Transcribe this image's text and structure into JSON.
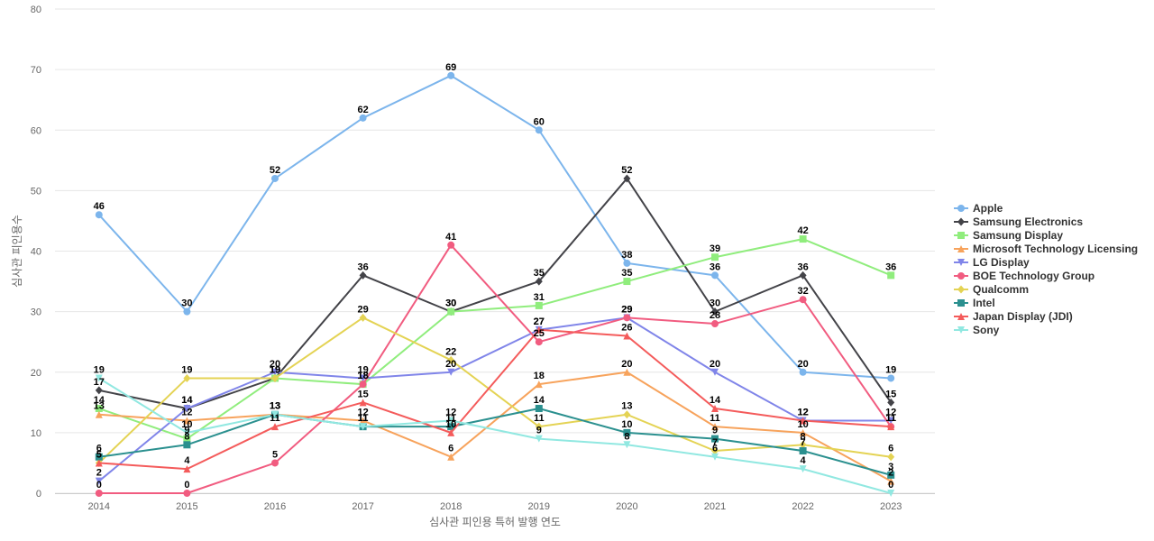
{
  "chart_data": {
    "type": "line",
    "title": "",
    "xlabel": "심사관 피인용 특허 발행 연도",
    "ylabel": "심사관 피인용수",
    "x": [
      "2014",
      "2015",
      "2016",
      "2017",
      "2018",
      "2019",
      "2020",
      "2021",
      "2022",
      "2023"
    ],
    "ylim": [
      0,
      80
    ],
    "yticks": [
      0,
      10,
      20,
      30,
      40,
      50,
      60,
      70,
      80
    ],
    "grid": true,
    "legend_position": "right",
    "data_labels": true,
    "series": [
      {
        "name": "Apple",
        "color": "#7cb5ec",
        "marker": "circle",
        "values": [
          46,
          30,
          52,
          62,
          69,
          60,
          38,
          36,
          20,
          19
        ]
      },
      {
        "name": "Samsung Electronics",
        "color": "#434348",
        "marker": "diamond",
        "values": [
          17,
          14,
          19,
          36,
          30,
          35,
          52,
          30,
          36,
          15
        ]
      },
      {
        "name": "Samsung Display",
        "color": "#90ed7d",
        "marker": "square",
        "values": [
          14,
          9,
          19,
          18,
          30,
          31,
          35,
          39,
          42,
          36
        ]
      },
      {
        "name": "Microsoft Technology Licensing",
        "color": "#f7a35c",
        "marker": "triangle",
        "values": [
          13,
          12,
          13,
          12,
          6,
          18,
          20,
          11,
          10,
          2
        ]
      },
      {
        "name": "LG Display",
        "color": "#8085e9",
        "marker": "triangle-down",
        "values": [
          2,
          14,
          20,
          19,
          20,
          27,
          29,
          20,
          12,
          12
        ]
      },
      {
        "name": "BOE Technology Group",
        "color": "#f15c80",
        "marker": "circle",
        "values": [
          0,
          0,
          5,
          18,
          41,
          25,
          29,
          28,
          32,
          11
        ]
      },
      {
        "name": "Qualcomm",
        "color": "#e4d354",
        "marker": "diamond",
        "values": [
          5,
          19,
          19,
          29,
          22,
          11,
          13,
          7,
          8,
          6
        ]
      },
      {
        "name": "Intel",
        "color": "#2b908f",
        "marker": "square",
        "values": [
          6,
          8,
          13,
          11,
          11,
          14,
          10,
          9,
          7,
          3
        ]
      },
      {
        "name": "Japan Display (JDI)",
        "color": "#f45b5b",
        "marker": "triangle",
        "values": [
          5,
          4,
          11,
          15,
          10,
          27,
          26,
          14,
          12,
          11
        ]
      },
      {
        "name": "Sony",
        "color": "#91e8e1",
        "marker": "triangle-down",
        "values": [
          19,
          10,
          13,
          11,
          12,
          9,
          8,
          6,
          4,
          0
        ]
      }
    ]
  }
}
